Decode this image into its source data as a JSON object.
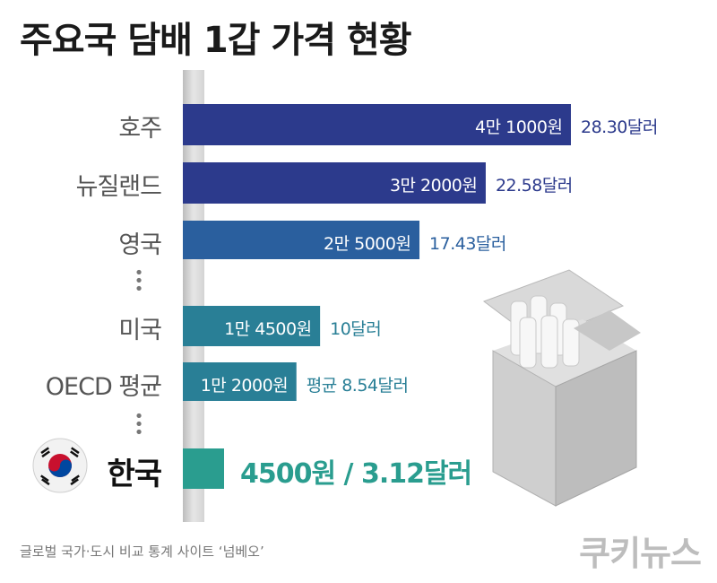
{
  "title": "주요국 담배 1갑 가격 현황",
  "source": "글로벌 국가·도시 비교 통계 사이트 ‘넘베오’",
  "brand": "쿠키뉴스",
  "colors": {
    "bar_dark": "#2c3a8c",
    "bar_mid": "#2a5f9e",
    "bar_teal": "#297f96",
    "highlight": "#2a9d8f"
  },
  "chart_data": {
    "type": "bar",
    "orientation": "horizontal",
    "title": "주요국 담배 1갑 가격 현황",
    "categories": [
      "호주",
      "뉴질랜드",
      "영국",
      "미국",
      "OECD 평균",
      "한국"
    ],
    "series": [
      {
        "values": [
          41000,
          32000,
          25000,
          14500,
          12000,
          4500
        ]
      }
    ],
    "value_labels": [
      "4만 1000원",
      "3만 2000원",
      "2만 5000원",
      "1만 4500원",
      "1만 2000원",
      "4500원"
    ],
    "usd_labels": [
      "28.30달러",
      "22.58달러",
      "17.43달러",
      "10달러",
      "평균 8.54달러",
      "3.12달러"
    ],
    "highlight_label": "4500원 / 3.12달러",
    "highlight_category": "한국",
    "xlim": [
      0,
      41000
    ],
    "grid": false,
    "legend": "none"
  }
}
